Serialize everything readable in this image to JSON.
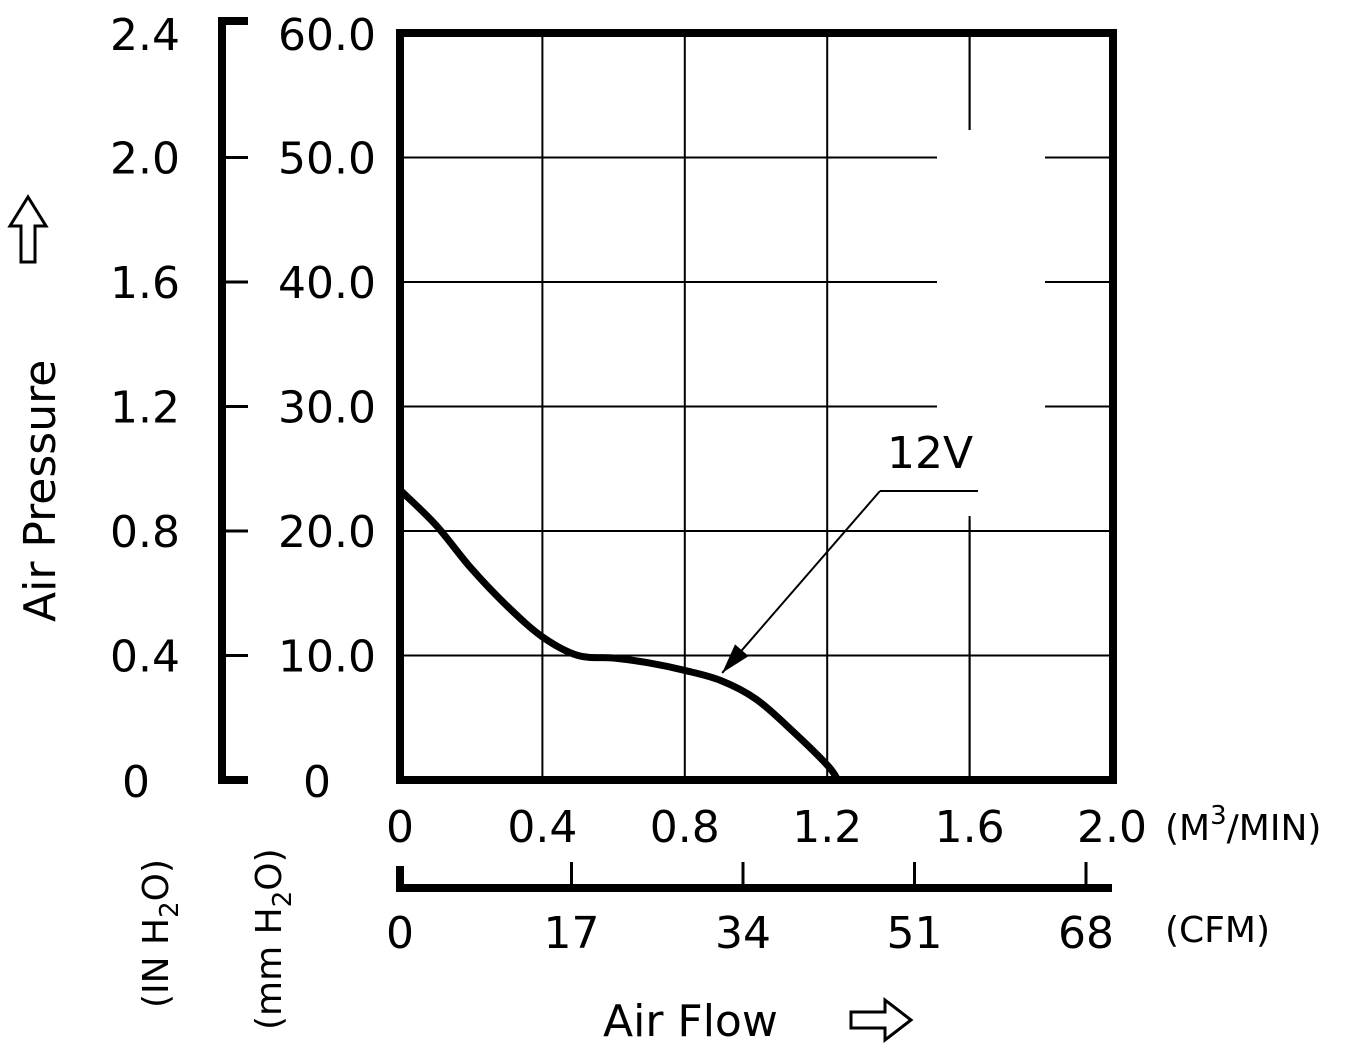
{
  "chart_data": {
    "type": "line",
    "title": "",
    "xlabel": "Air Flow",
    "ylabel": "Air Pressure",
    "x_units": {
      "primary": {
        "base": "(M",
        "sup": "3",
        "rest": "/MIN)"
      },
      "secondary": "(CFM)"
    },
    "y_units": {
      "inner": {
        "base": "(mm H",
        "sub": "2",
        "rest": "O)"
      },
      "outer": {
        "base": "(IN H",
        "sub": "2",
        "rest": "O)"
      }
    },
    "x_ticks_m3min": [
      "0",
      "0.4",
      "0.8",
      "1.2",
      "1.6",
      "2.0"
    ],
    "x_ticks_cfm": [
      "0",
      "17",
      "34",
      "51",
      "68"
    ],
    "y_ticks_mmh2o": [
      "0",
      "10.0",
      "20.0",
      "30.0",
      "40.0",
      "50.0",
      "60.0"
    ],
    "y_ticks_inh2o": [
      "0",
      "0.4",
      "0.8",
      "1.2",
      "1.6",
      "2.0",
      "2.4"
    ],
    "xlim": [
      0,
      2.0
    ],
    "ylim": [
      0,
      60
    ],
    "grid": true,
    "series": [
      {
        "name": "12V",
        "x": [
          0,
          0.1,
          0.2,
          0.3,
          0.4,
          0.5,
          0.6,
          0.7,
          0.8,
          0.9,
          1.0,
          1.1,
          1.2,
          1.23
        ],
        "y": [
          23.3,
          20.5,
          17.0,
          14.0,
          11.5,
          10.0,
          9.8,
          9.4,
          8.8,
          8.0,
          6.5,
          4.0,
          1.2,
          0.0
        ]
      }
    ],
    "annotation": {
      "text": "12V",
      "x": 0.905,
      "y": 8.6
    }
  }
}
